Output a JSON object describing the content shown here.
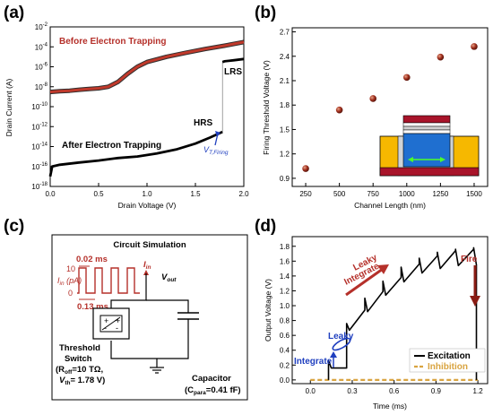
{
  "panel_labels": {
    "a": "(a)",
    "b": "(b)",
    "c": "(c)",
    "d": "(d)"
  },
  "colors": {
    "red": "#b5302a",
    "dark_red": "#8a1c14",
    "black": "#000000",
    "blue": "#1f3fbf",
    "orange": "#d9a441"
  },
  "panel_a": {
    "xlabel": "Drain Voltage (V)",
    "ylabel": "Drain Current (A)",
    "xticks": [
      "0.0",
      "0.5",
      "1.0",
      "1.5",
      "2.0"
    ],
    "yticks": [
      {
        "base": "10",
        "exp": "-2"
      },
      {
        "base": "10",
        "exp": "-4"
      },
      {
        "base": "10",
        "exp": "-6"
      },
      {
        "base": "10",
        "exp": "-8"
      },
      {
        "base": "10",
        "exp": "-10"
      },
      {
        "base": "10",
        "exp": "-12"
      },
      {
        "base": "10",
        "exp": "-14"
      },
      {
        "base": "10",
        "exp": "-16"
      },
      {
        "base": "10",
        "exp": "-18"
      }
    ],
    "before_label": "Before Electron Trapping",
    "after_label": "After Electron Trapping",
    "lrs": "LRS",
    "hrs": "HRS",
    "vt_label": "V",
    "vt_sub": "T,Firing"
  },
  "panel_b": {
    "xlabel": "Channel Length (nm)",
    "ylabel": "Firing Threshold Voltage (V)",
    "xticks": [
      "250",
      "500",
      "750",
      "1000",
      "1250",
      "1500"
    ],
    "yticks": [
      "0.9",
      "1.2",
      "1.5",
      "1.8",
      "2.1",
      "2.4",
      "2.7"
    ]
  },
  "panel_c": {
    "title": "Circuit Simulation",
    "pulse_width": "0.02 ms",
    "pulse_period": "0.13 ms",
    "i_in_axis": "I",
    "i_in_axis_sub": "in",
    "i_in_axis_unit": " (pA)",
    "level_high": "10",
    "level_low": "0",
    "i_in": "I",
    "i_in_sub": "in",
    "v_out": "V",
    "v_out_sub": "out",
    "switch_label_1": "Threshold",
    "switch_label_2": "Switch",
    "roff_text": "(R",
    "roff_sub": "off",
    "roff_val": "=10 TΩ,",
    "vth_text": "V",
    "vth_sub": "th",
    "vth_val": "= 1.78 V)",
    "cap_label": "Capacitor",
    "cpara_text": "(C",
    "cpara_sub": "para",
    "cpara_val": "=0.41 fF)"
  },
  "panel_d": {
    "xlabel": "Time (ms)",
    "ylabel": "Output Voltage (V)",
    "xticks": [
      "0.0",
      "0.3",
      "0.6",
      "0.9",
      "1.2"
    ],
    "yticks": [
      "0.0",
      "0.2",
      "0.4",
      "0.6",
      "0.8",
      "1.0",
      "1.2",
      "1.4",
      "1.6",
      "1.8"
    ],
    "leaky_integrate_1": "Leaky",
    "leaky_integrate_2": "Integrate",
    "leaky": "Leaky",
    "integrate": "Integrate",
    "fire": "Fire",
    "legend_excitation": "Excitation",
    "legend_inhibition": "Inhibition"
  },
  "chart_data": [
    {
      "type": "line",
      "xlabel": "Drain Voltage (V)",
      "ylabel": "Drain Current (A)",
      "xlim": [
        0,
        2.0
      ],
      "ylim": [
        1e-18,
        0.01
      ],
      "y_scale": "log",
      "series": [
        {
          "name": "Before Electron Trapping",
          "x": [
            0.0,
            0.1,
            0.2,
            0.3,
            0.4,
            0.5,
            0.6,
            0.7,
            0.8,
            0.9,
            1.0,
            1.2,
            1.4,
            1.6,
            1.8,
            2.0
          ],
          "y": [
            3e-09,
            3.5e-09,
            4e-09,
            5e-09,
            6e-09,
            7e-09,
            1e-08,
            3e-08,
            2e-07,
            1e-06,
            3e-06,
            1e-05,
            2.5e-05,
            6e-05,
            0.00013,
            0.0003
          ]
        },
        {
          "name": "After Electron Trapping",
          "x": [
            0.0,
            0.02,
            0.1,
            0.3,
            0.5,
            0.7,
            0.9,
            1.1,
            1.3,
            1.5,
            1.65,
            1.78,
            1.78,
            1.8,
            1.9,
            2.0
          ],
          "y": [
            1e-17,
            1e-16,
            1.5e-16,
            2.5e-16,
            4e-16,
            7e-16,
            1e-15,
            2e-15,
            5e-15,
            2e-14,
            8e-14,
            3e-13,
            3e-06,
            3.5e-06,
            4.5e-06,
            6e-06
          ]
        }
      ]
    },
    {
      "type": "scatter",
      "xlabel": "Channel Length (nm)",
      "ylabel": "Firing Threshold Voltage (V)",
      "xlim": [
        150,
        1600
      ],
      "ylim": [
        0.8,
        2.75
      ],
      "x": [
        250,
        500,
        750,
        1000,
        1250,
        1500
      ],
      "y": [
        1.02,
        1.74,
        1.88,
        2.14,
        2.39,
        2.52
      ]
    },
    {
      "type": "line",
      "xlabel": "Time (ms)",
      "ylabel": "Output Voltage (V)",
      "xlim": [
        -0.13,
        1.27
      ],
      "ylim": [
        -0.05,
        1.93
      ],
      "legend": "bottom-right",
      "series": [
        {
          "name": "Excitation",
          "x": [
            0.13,
            0.13,
            0.15,
            0.26,
            0.26,
            0.28,
            0.39,
            0.39,
            0.41,
            0.52,
            0.52,
            0.54,
            0.65,
            0.65,
            0.67,
            0.78,
            0.78,
            0.8,
            0.91,
            0.91,
            0.93,
            1.04,
            1.04,
            1.06,
            1.17,
            1.17,
            1.19,
            1.19
          ],
          "y": [
            0.0,
            0.26,
            0.16,
            0.16,
            0.76,
            0.67,
            0.94,
            1.1,
            0.92,
            1.19,
            1.33,
            1.14,
            1.38,
            1.52,
            1.32,
            1.56,
            1.64,
            1.44,
            1.67,
            1.72,
            1.5,
            1.74,
            1.76,
            1.54,
            1.76,
            1.78,
            1.55,
            0.0
          ]
        },
        {
          "name": "Inhibition",
          "x": [
            0.0,
            1.2
          ],
          "y": [
            0.0,
            0.0
          ]
        }
      ]
    }
  ]
}
